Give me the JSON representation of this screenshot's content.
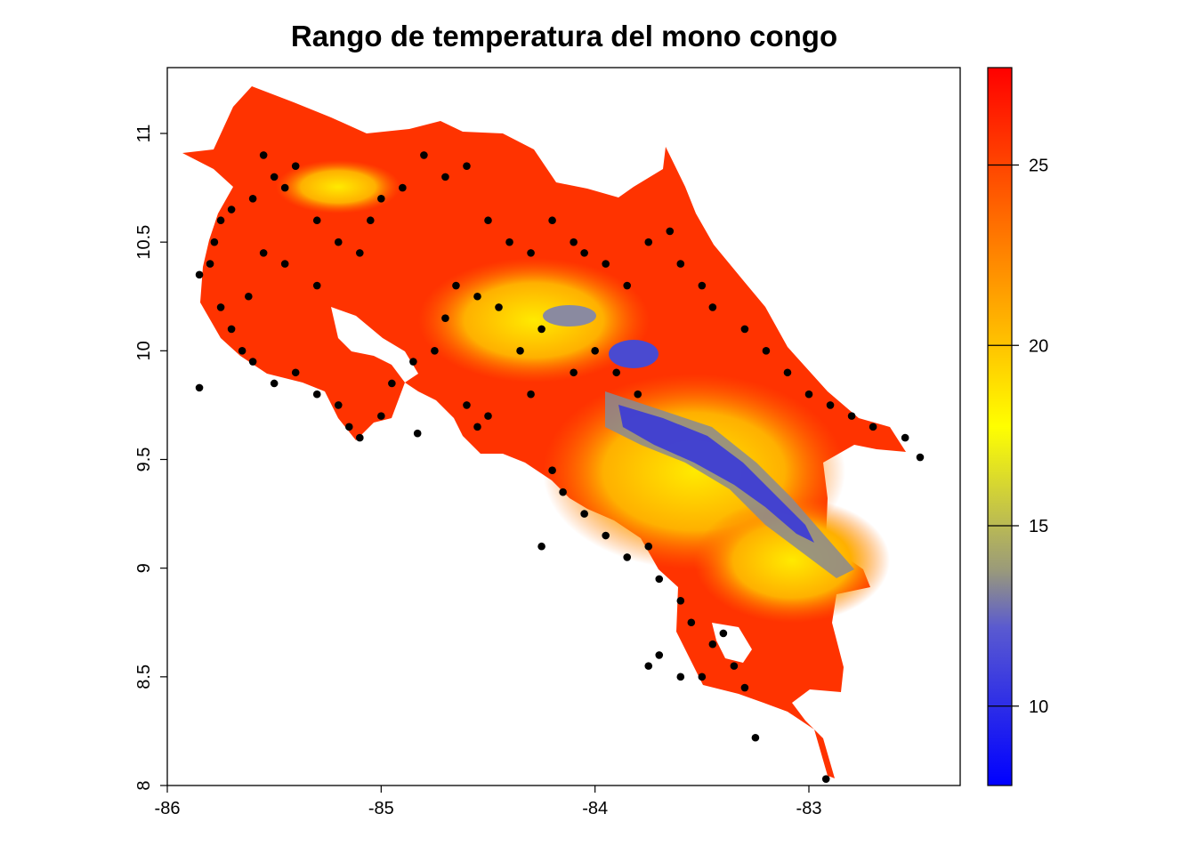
{
  "title": "Rango de temperatura del mono congo",
  "chart_data": {
    "type": "raster-map-with-points",
    "title": "Rango de temperatura del mono congo",
    "xlabel": "",
    "ylabel": "",
    "xlim": [
      -86,
      -82.4
    ],
    "ylim": [
      8,
      11.3
    ],
    "x_ticks": [
      "-86",
      "-85",
      "-84",
      "-83"
    ],
    "y_ticks": [
      "8",
      "8.5",
      "9",
      "9.5",
      "10",
      "10.5",
      "11"
    ],
    "colorbar": {
      "range": [
        7.8,
        27.7
      ],
      "ticks": [
        "10",
        "15",
        "20",
        "25"
      ],
      "colors": [
        "#0000ff",
        "#9a9a7a",
        "#ffff00",
        "#ff9a00",
        "#ff0000"
      ]
    },
    "point_color": "#000000",
    "raster_color_land": "#ff3300",
    "points": [
      [
        -85.85,
        10.35
      ],
      [
        -85.8,
        10.4
      ],
      [
        -85.78,
        10.5
      ],
      [
        -85.75,
        10.6
      ],
      [
        -85.7,
        10.65
      ],
      [
        -85.6,
        10.7
      ],
      [
        -85.55,
        10.9
      ],
      [
        -85.5,
        10.8
      ],
      [
        -85.45,
        10.75
      ],
      [
        -85.4,
        10.85
      ],
      [
        -85.3,
        10.6
      ],
      [
        -85.2,
        10.5
      ],
      [
        -85.1,
        10.45
      ],
      [
        -85.05,
        10.6
      ],
      [
        -85.0,
        10.7
      ],
      [
        -84.9,
        10.75
      ],
      [
        -84.8,
        10.9
      ],
      [
        -84.7,
        10.8
      ],
      [
        -84.6,
        10.85
      ],
      [
        -84.5,
        10.6
      ],
      [
        -84.4,
        10.5
      ],
      [
        -84.3,
        10.45
      ],
      [
        -84.2,
        10.6
      ],
      [
        -84.1,
        10.5
      ],
      [
        -84.05,
        10.45
      ],
      [
        -83.95,
        10.4
      ],
      [
        -83.85,
        10.3
      ],
      [
        -83.75,
        10.5
      ],
      [
        -83.65,
        10.55
      ],
      [
        -83.6,
        10.4
      ],
      [
        -83.5,
        10.3
      ],
      [
        -83.45,
        10.2
      ],
      [
        -83.3,
        10.1
      ],
      [
        -83.2,
        10.0
      ],
      [
        -83.1,
        9.9
      ],
      [
        -83.0,
        9.8
      ],
      [
        -82.9,
        9.75
      ],
      [
        -82.8,
        9.7
      ],
      [
        -82.7,
        9.65
      ],
      [
        -82.55,
        9.6
      ],
      [
        -85.75,
        10.2
      ],
      [
        -85.7,
        10.1
      ],
      [
        -85.65,
        10.0
      ],
      [
        -85.6,
        9.95
      ],
      [
        -85.5,
        9.85
      ],
      [
        -85.4,
        9.9
      ],
      [
        -85.3,
        9.8
      ],
      [
        -85.2,
        9.75
      ],
      [
        -85.15,
        9.65
      ],
      [
        -85.1,
        9.6
      ],
      [
        -85.0,
        9.7
      ],
      [
        -84.95,
        9.85
      ],
      [
        -84.85,
        9.95
      ],
      [
        -84.75,
        10.0
      ],
      [
        -84.7,
        10.15
      ],
      [
        -84.65,
        10.3
      ],
      [
        -84.6,
        9.75
      ],
      [
        -84.55,
        9.65
      ],
      [
        -84.5,
        9.7
      ],
      [
        -84.3,
        9.8
      ],
      [
        -84.2,
        9.45
      ],
      [
        -84.15,
        9.35
      ],
      [
        -84.05,
        9.25
      ],
      [
        -83.95,
        9.15
      ],
      [
        -83.85,
        9.05
      ],
      [
        -83.75,
        9.1
      ],
      [
        -83.7,
        8.95
      ],
      [
        -83.6,
        8.85
      ],
      [
        -83.55,
        8.75
      ],
      [
        -83.45,
        8.65
      ],
      [
        -83.35,
        8.55
      ],
      [
        -83.3,
        8.45
      ],
      [
        -83.5,
        8.5
      ],
      [
        -83.6,
        8.5
      ],
      [
        -83.7,
        8.6
      ],
      [
        -83.75,
        8.55
      ],
      [
        -83.4,
        8.7
      ],
      [
        -84.0,
        10.0
      ],
      [
        -83.9,
        9.9
      ],
      [
        -83.8,
        9.8
      ],
      [
        -84.1,
        9.9
      ],
      [
        -84.25,
        10.1
      ],
      [
        -84.35,
        10.0
      ],
      [
        -84.45,
        10.2
      ],
      [
        -84.55,
        10.25
      ],
      [
        -85.3,
        10.3
      ],
      [
        -85.45,
        10.4
      ],
      [
        -85.55,
        10.45
      ],
      [
        -85.62,
        10.25
      ],
      [
        -85.85,
        9.83
      ],
      [
        -84.25,
        9.1
      ],
      [
        -83.25,
        8.22
      ],
      [
        -82.92,
        8.03
      ],
      [
        -82.48,
        9.51
      ],
      [
        -84.83,
        9.62
      ]
    ]
  }
}
